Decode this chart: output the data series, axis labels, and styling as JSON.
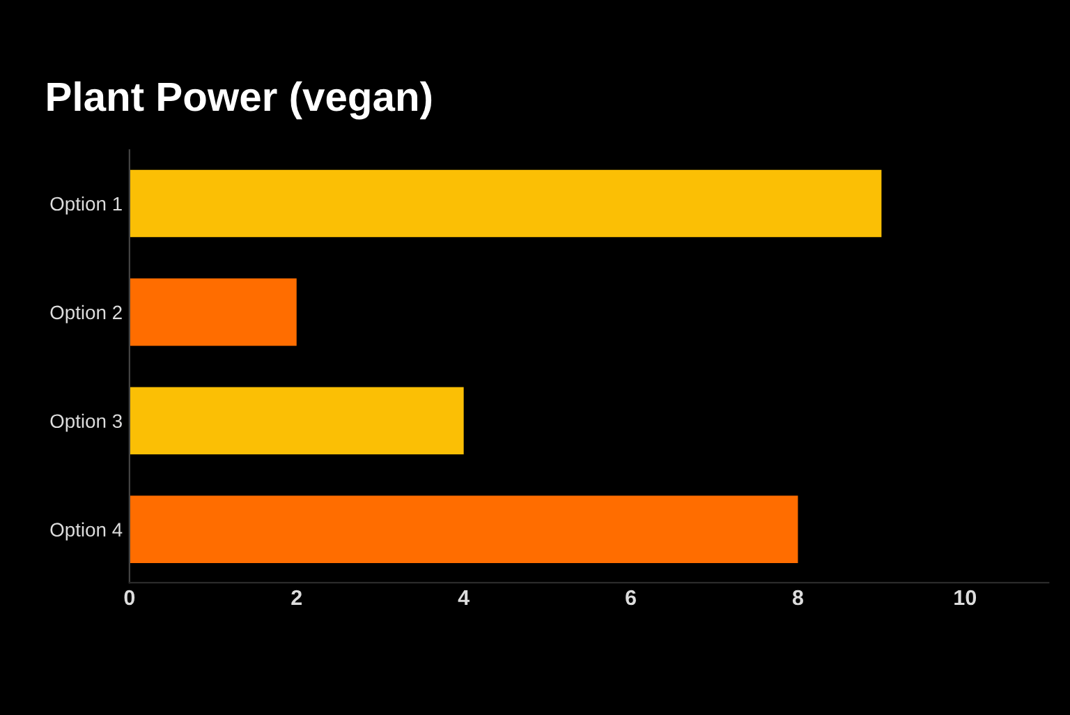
{
  "chart_data": {
    "type": "bar",
    "orientation": "horizontal",
    "title": "Plant Power (vegan)",
    "categories": [
      "Option 1",
      "Option 2",
      "Option 3",
      "Option 4"
    ],
    "values": [
      9,
      2,
      4,
      8
    ],
    "colors": [
      "#fbbf05",
      "#ff6d00",
      "#fbbf05",
      "#ff6d00"
    ],
    "xlim": [
      0,
      11
    ],
    "xticks": [
      0,
      2,
      4,
      6,
      8,
      10
    ],
    "grid": false,
    "legend": false
  }
}
